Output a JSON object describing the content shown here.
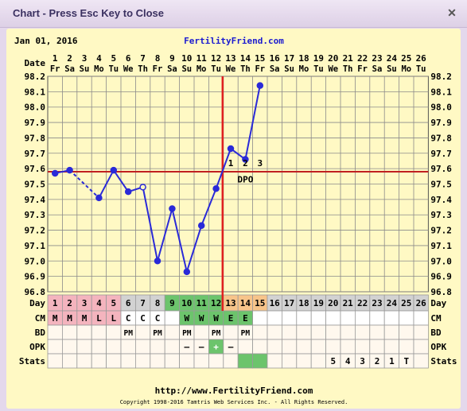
{
  "window": {
    "title": "Chart - Press Esc Key to Close",
    "close_icon": "close-icon"
  },
  "header": {
    "date": "Jan 01, 2016",
    "site": "FertilityFriend.com"
  },
  "footer": {
    "url": "http://www.FertilityFriend.com",
    "copyright": "Copyright 1998-2016 Tamtris Web Services Inc. - All Rights Reserved."
  },
  "chart_data": {
    "type": "line",
    "row_labels": {
      "date": "Date",
      "day": "Day",
      "cm": "CM",
      "bd": "BD",
      "opk": "OPK",
      "stats": "Stats"
    },
    "dates": [
      "1",
      "2",
      "3",
      "4",
      "5",
      "6",
      "7",
      "8",
      "9",
      "10",
      "11",
      "12",
      "13",
      "14",
      "15",
      "16",
      "17",
      "18",
      "19",
      "20",
      "21",
      "22",
      "23",
      "24",
      "25",
      "26"
    ],
    "weekdays": [
      "Fr",
      "Sa",
      "Su",
      "Mo",
      "Tu",
      "We",
      "Th",
      "Fr",
      "Sa",
      "Su",
      "Mo",
      "Tu",
      "We",
      "Th",
      "Fr",
      "Sa",
      "Su",
      "Mo",
      "Tu",
      "We",
      "Th",
      "Fr",
      "Sa",
      "Su",
      "Mo",
      "Tu"
    ],
    "days": [
      "1",
      "2",
      "3",
      "4",
      "5",
      "6",
      "7",
      "8",
      "9",
      "10",
      "11",
      "12",
      "13",
      "14",
      "15",
      "16",
      "17",
      "18",
      "19",
      "20",
      "21",
      "22",
      "23",
      "24",
      "25",
      "26"
    ],
    "y_ticks": [
      "98.2",
      "98.1",
      "98.0",
      "97.9",
      "97.8",
      "97.7",
      "97.6",
      "97.5",
      "97.4",
      "97.3",
      "97.2",
      "97.1",
      "97.0",
      "96.9",
      "96.8"
    ],
    "ylim": [
      96.8,
      98.2
    ],
    "temps": [
      97.57,
      97.59,
      null,
      97.41,
      97.59,
      97.45,
      97.48,
      97.0,
      97.34,
      96.93,
      97.23,
      97.47,
      97.73,
      97.66,
      98.14
    ],
    "open_points": [
      7
    ],
    "dashed_segments": [
      [
        2,
        4
      ]
    ],
    "coverline": 97.58,
    "ovulation_day": 12,
    "dpo_labels": [
      "1",
      "2",
      "3"
    ],
    "dpo_text": "DPO",
    "day_colors": [
      "#f4b4be",
      "#f4b4be",
      "#f4b4be",
      "#f4b4be",
      "#f4b4be",
      "",
      "",
      "",
      "#6cc46c",
      "#6cc46c",
      "#6cc46c",
      "#6cc46c",
      "#f7c48a",
      "#f7c48a",
      "#f7c48a",
      "",
      "",
      "",
      "",
      "",
      "",
      "",
      "",
      "",
      "",
      ""
    ],
    "cm": [
      "M",
      "M",
      "M",
      "L",
      "L",
      "C",
      "C",
      "C",
      "",
      "W",
      "W",
      "W",
      "E",
      "E",
      "",
      "",
      "",
      "",
      "",
      "",
      "",
      "",
      "",
      "",
      "",
      ""
    ],
    "cm_colors": [
      "#f4b4be",
      "#f4b4be",
      "#f4b4be",
      "#f4b4be",
      "#f4b4be",
      "",
      "",
      "",
      "",
      "#6cc46c",
      "#6cc46c",
      "#6cc46c",
      "#6cc46c",
      "#6cc46c",
      "",
      "",
      "",
      "",
      "",
      "",
      "",
      "",
      "",
      "",
      "",
      ""
    ],
    "bd": [
      "",
      "",
      "",
      "",
      "",
      "PM",
      "",
      "PM",
      "",
      "PM",
      "",
      "PM",
      "",
      "PM",
      "",
      "",
      "",
      "",
      "",
      "",
      "",
      "",
      "",
      "",
      "",
      ""
    ],
    "opk": [
      "",
      "",
      "",
      "",
      "",
      "",
      "",
      "",
      "",
      "–",
      "–",
      "+",
      "–",
      "",
      "",
      "",
      "",
      "",
      "",
      "",
      "",
      "",
      "",
      "",
      "",
      ""
    ],
    "opk_colors": [
      "",
      "",
      "",
      "",
      "",
      "",
      "",
      "",
      "",
      "",
      "",
      "#6cc46c",
      "",
      "",
      "",
      "",
      "",
      "",
      "",
      "",
      "",
      "",
      "",
      "",
      "",
      ""
    ],
    "stats": [
      "",
      "",
      "",
      "",
      "",
      "",
      "",
      "",
      "",
      "",
      "",
      "",
      "",
      "",
      "",
      "",
      "",
      "",
      "",
      "5",
      "4",
      "3",
      "2",
      "1",
      "T",
      ""
    ],
    "stats_colors": [
      "",
      "",
      "",
      "",
      "",
      "",
      "",
      "",
      "",
      "",
      "",
      "",
      "",
      "#6cc46c",
      "#6cc46c",
      "",
      "",
      "",
      "",
      "",
      "",
      "",
      "",
      "",
      "",
      ""
    ],
    "colors": {
      "line": "#2a2ad8",
      "grid": "#8a8a8a",
      "ovulation": "#e02020",
      "coverline": "#c02020"
    }
  }
}
